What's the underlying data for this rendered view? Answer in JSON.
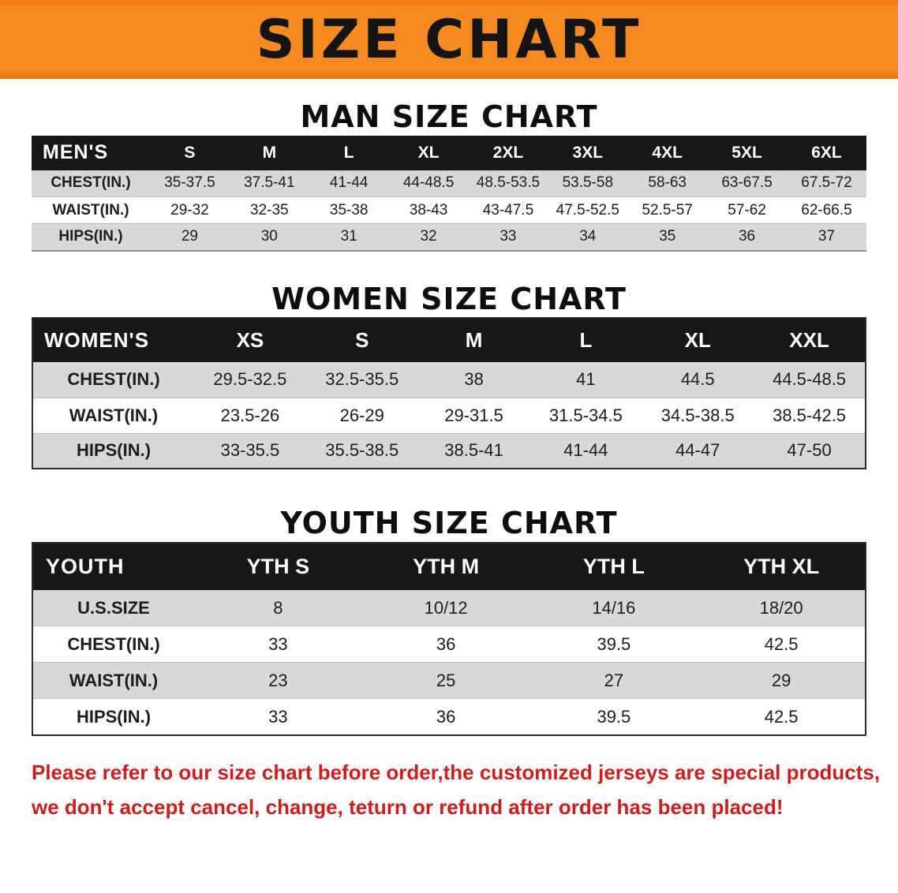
{
  "banner": {
    "title": "SIZE CHART",
    "bg_color": "#f68a22",
    "title_color": "#141414"
  },
  "men": {
    "heading": "MAN SIZE CHART",
    "table": {
      "header": [
        "MEN'S",
        "S",
        "M",
        "L",
        "XL",
        "2XL",
        "3XL",
        "4XL",
        "5XL",
        "6XL"
      ],
      "rows": [
        [
          "CHEST(IN.)",
          "35-37.5",
          "37.5-41",
          "41-44",
          "44-48.5",
          "48.5-53.5",
          "53.5-58",
          "58-63",
          "63-67.5",
          "67.5-72"
        ],
        [
          "WAIST(IN.)",
          "29-32",
          "32-35",
          "35-38",
          "38-43",
          "43-47.5",
          "47.5-52.5",
          "52.5-57",
          "57-62",
          "62-66.5"
        ],
        [
          "HIPS(IN.)",
          "29",
          "30",
          "31",
          "32",
          "33",
          "34",
          "35",
          "36",
          "37"
        ]
      ]
    }
  },
  "women": {
    "heading": "WOMEN SIZE CHART",
    "table": {
      "header": [
        "WOMEN'S",
        "XS",
        "S",
        "M",
        "L",
        "XL",
        "XXL"
      ],
      "rows": [
        [
          "CHEST(IN.)",
          "29.5-32.5",
          "32.5-35.5",
          "38",
          "41",
          "44.5",
          "44.5-48.5"
        ],
        [
          "WAIST(IN.)",
          "23.5-26",
          "26-29",
          "29-31.5",
          "31.5-34.5",
          "34.5-38.5",
          "38.5-42.5"
        ],
        [
          "HIPS(IN.)",
          "33-35.5",
          "35.5-38.5",
          "38.5-41",
          "41-44",
          "44-47",
          "47-50"
        ]
      ]
    }
  },
  "youth": {
    "heading": "YOUTH SIZE CHART",
    "table": {
      "header": [
        "YOUTH",
        "YTH S",
        "YTH M",
        "YTH L",
        "YTH XL"
      ],
      "rows": [
        [
          "U.S.SIZE",
          "8",
          "10/12",
          "14/16",
          "18/20"
        ],
        [
          "CHEST(IN.)",
          "33",
          "36",
          "39.5",
          "42.5"
        ],
        [
          "WAIST(IN.)",
          "23",
          "25",
          "27",
          "29"
        ],
        [
          "HIPS(IN.)",
          "33",
          "36",
          "39.5",
          "42.5"
        ]
      ]
    }
  },
  "footer": {
    "line1": "Please refer to our size chart before order,the customized jerseys are special products,",
    "line2": "we don't accept cancel, change, teturn or refund after order has been placed!",
    "text_color": "#ce1d1d"
  }
}
